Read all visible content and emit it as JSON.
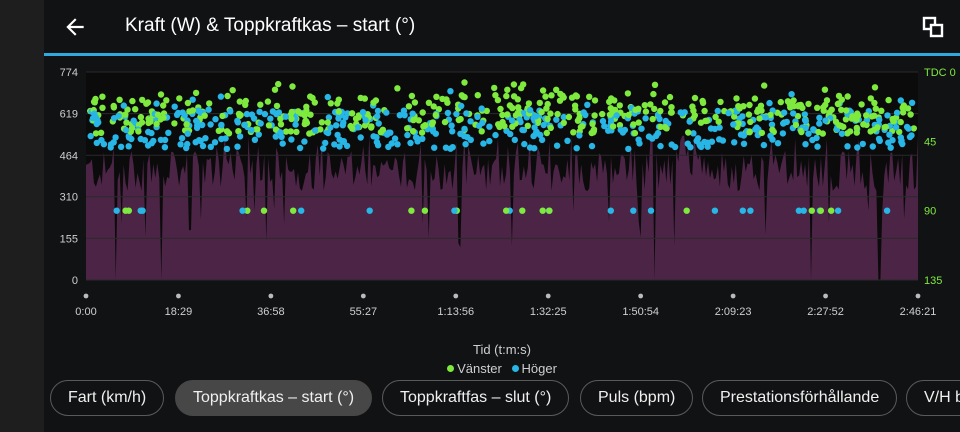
{
  "header": {
    "title": "Kraft (W) & Toppkraftkas – start (°)",
    "back_icon": "arrow-left-icon",
    "fullscreen_icon": "fullscreen-toggle-icon"
  },
  "colors": {
    "accent_line": "#2fa9e0",
    "power_fill": "#4b2446",
    "left_series": "#7fea3e",
    "right_series": "#27b6e6",
    "left_axis_text": "#cfcfcf",
    "right_axis_text": "#7fea3e"
  },
  "chart_data": {
    "type": "area+scatter",
    "x_title": "Tid (t:m:s)",
    "x_ticks": [
      "0:00",
      "18:29",
      "36:58",
      "55:27",
      "1:13:56",
      "1:32:25",
      "1:50:54",
      "2:09:23",
      "2:27:52",
      "2:46:21"
    ],
    "y_left_ticks": [
      "774",
      "619",
      "464",
      "310",
      "155",
      "0"
    ],
    "y_left_range": [
      0,
      774
    ],
    "y_right_ticks": [
      "TDC 0",
      "45",
      "90",
      "135"
    ],
    "y_right_range": [
      0,
      135
    ],
    "y_right_inverted": true,
    "legend": [
      {
        "label": "Vänster",
        "color": "#7fea3e"
      },
      {
        "label": "Höger",
        "color": "#27b6e6"
      }
    ],
    "power_series": {
      "description": "dense power area, mostly 250-480 W with occasional drops to 0",
      "typical_range": [
        250,
        480
      ],
      "x_range_seconds": [
        0,
        9981
      ]
    },
    "left_peak_start_series": {
      "typical_range_deg": [
        15,
        40
      ],
      "outlier_value_deg": 90
    },
    "right_peak_start_series": {
      "typical_range_deg": [
        25,
        50
      ],
      "outlier_value_deg": 90
    }
  },
  "chips": [
    {
      "label": "Fart (km/h)",
      "active": false
    },
    {
      "label": "Toppkraftkas – start (°)",
      "active": true
    },
    {
      "label": "Toppkraftfas – slut (°)",
      "active": false
    },
    {
      "label": "Puls (bpm)",
      "active": false
    },
    {
      "label": "Prestationsförhållande",
      "active": false
    },
    {
      "label": "V/H b",
      "active": false
    }
  ]
}
